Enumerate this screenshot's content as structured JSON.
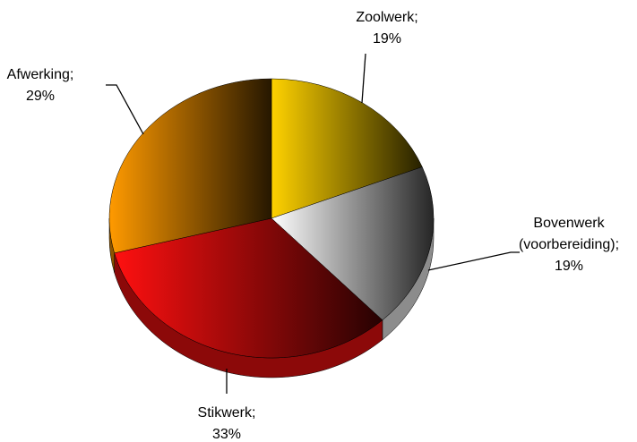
{
  "chart_data": {
    "type": "pie",
    "three_d": true,
    "categories": [
      "Zoolwerk",
      "Bovenwerk (voorbereiding)",
      "Stikwerk",
      "Afwerking"
    ],
    "values": [
      19,
      19,
      33,
      29
    ],
    "value_labels": [
      "19%",
      "19%",
      "33%",
      "29%"
    ],
    "separator": ";",
    "colors": [
      "#ffd200",
      "#ffffff",
      "#ff1010",
      "#ff9a00"
    ]
  }
}
